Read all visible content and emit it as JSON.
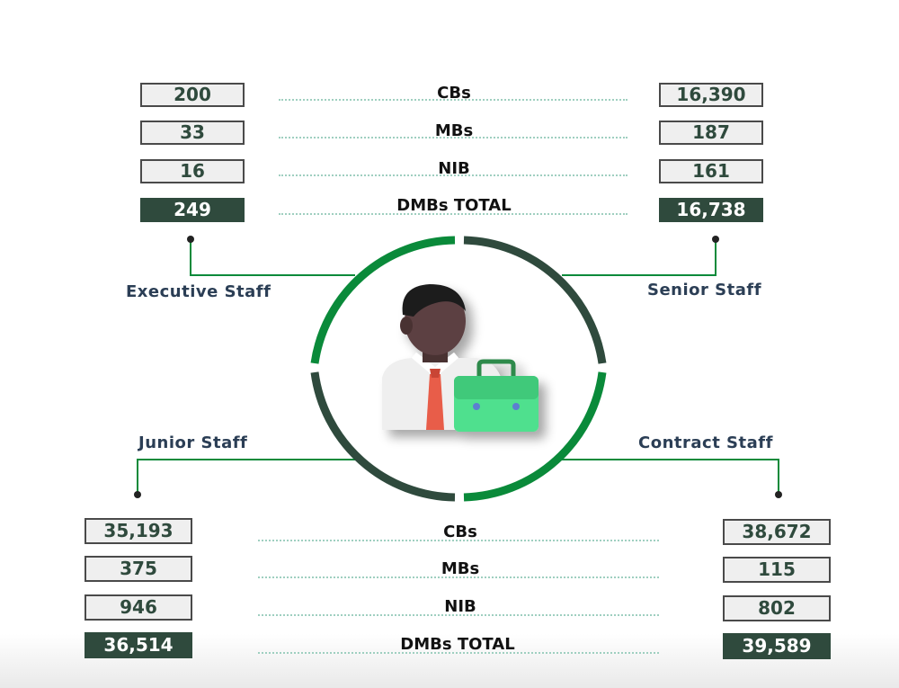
{
  "row_labels": [
    "CBs",
    "MBs",
    "NIB",
    "DMBs TOTAL"
  ],
  "executive_staff": {
    "title": "Executive Staff",
    "values": [
      "200",
      "33",
      "16",
      "249"
    ]
  },
  "senior_staff": {
    "title": "Senior Staff",
    "values": [
      "16,390",
      "187",
      "161",
      "16,738"
    ]
  },
  "junior_staff": {
    "title": "Junior Staff",
    "values": [
      "35,193",
      "375",
      "946",
      "36,514"
    ]
  },
  "contract_staff": {
    "title": "Contract Staff",
    "values": [
      "38,672",
      "115",
      "802",
      "39,589"
    ]
  },
  "colors": {
    "dark_green": "#2f4a3d",
    "bright_green": "#0a8a3a",
    "label_navy": "#2b3e55"
  },
  "icon": "businessman-with-briefcase-icon"
}
